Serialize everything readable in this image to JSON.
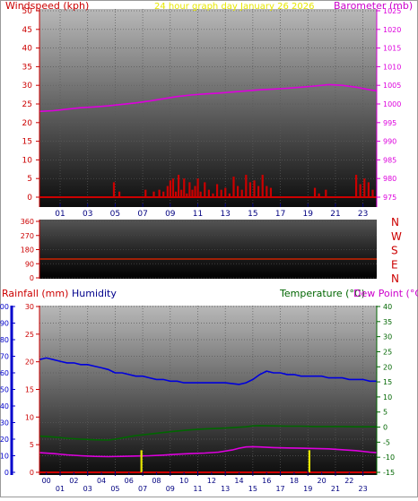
{
  "top_panel": {
    "left_label": "Windspeed (kph)",
    "center_label": "24 hour graph day   January 26 2026",
    "right_label": "Barometer (mb)"
  },
  "bottom_panel": {
    "left_label_1": "Rainfall (mm)",
    "left_label_2": "Humidity",
    "right_label_1": "Temperature (°C)",
    "right_label_2": "Dew Point (°C)"
  },
  "colors": {
    "windspeed": "#cc0000",
    "barometer": "#dd00dd",
    "center_title": "#e8e800",
    "wind_direction": "#cc2200",
    "humidity": "#0000dd",
    "rain_axis": "#cc0000",
    "temperature": "#006600",
    "dewpoint": "#dd00dd",
    "rain_bars": "#e8e800",
    "axis_blue": "#0000cc",
    "x_ticks": "#000080"
  },
  "chart_data": [
    {
      "type": "line",
      "name": "wind-barometer",
      "x_ticks": [
        "01",
        "03",
        "05",
        "07",
        "09",
        "11",
        "13",
        "15",
        "17",
        "19",
        "21",
        "23"
      ],
      "x_tick_hours": [
        1,
        3,
        5,
        7,
        9,
        11,
        13,
        15,
        17,
        19,
        21,
        23
      ],
      "xlim": [
        -0.5,
        24.0
      ],
      "y_left_ticks": [
        0,
        5,
        10,
        15,
        20,
        25,
        30,
        35,
        40,
        45,
        50
      ],
      "y_left_lim": [
        0,
        50
      ],
      "y_right_ticks": [
        975,
        980,
        985,
        990,
        995,
        1000,
        1005,
        1010,
        1015,
        1020,
        1025
      ],
      "y_right_lim": [
        975,
        1025
      ],
      "barometer": {
        "x": [
          -0.5,
          0.5,
          1.5,
          2.5,
          3.5,
          4.5,
          5.5,
          6.5,
          7.5,
          8.5,
          9.5,
          10.5,
          11.5,
          12.5,
          13.5,
          14.5,
          15.5,
          16.5,
          17.5,
          18.5,
          19.5,
          20.5,
          21.5,
          22.5,
          23.5,
          24.0
        ],
        "y": [
          998.0,
          998.2,
          998.6,
          999.0,
          999.2,
          999.5,
          999.9,
          1000.3,
          1000.8,
          1001.4,
          1002.0,
          1002.4,
          1002.7,
          1002.9,
          1003.2,
          1003.5,
          1003.8,
          1004.0,
          1004.2,
          1004.5,
          1004.8,
          1005.2,
          1005.0,
          1004.5,
          1003.8,
          1003.5
        ]
      },
      "windspeed": {
        "x": [
          4.9,
          5.3,
          7.2,
          7.8,
          8.2,
          8.5,
          8.8,
          9.0,
          9.2,
          9.4,
          9.6,
          9.8,
          10.0,
          10.2,
          10.4,
          10.6,
          10.8,
          11.0,
          11.2,
          11.5,
          11.8,
          12.1,
          12.4,
          12.7,
          13.0,
          13.3,
          13.6,
          13.9,
          14.2,
          14.5,
          14.8,
          15.1,
          15.4,
          15.7,
          16.0,
          16.3,
          19.5,
          19.8,
          20.3,
          22.5,
          22.8,
          23.1,
          23.4,
          23.7
        ],
        "y": [
          4,
          1.5,
          2,
          1.5,
          2,
          1.5,
          3,
          4.5,
          5,
          1.5,
          6,
          2,
          5,
          1,
          4,
          2,
          3,
          5,
          1.5,
          4,
          2,
          1,
          3.5,
          2,
          2.5,
          1,
          5.5,
          3,
          2,
          6,
          4,
          4.5,
          3,
          6,
          3,
          2.5,
          2.5,
          1,
          2,
          6,
          3.5,
          5,
          4,
          2
        ]
      }
    },
    {
      "type": "line",
      "name": "wind-direction",
      "y_ticks": [
        0,
        90,
        180,
        270,
        360
      ],
      "y_lim": [
        0,
        360
      ],
      "compass_labels": [
        "N",
        "W",
        "S",
        "E",
        "N"
      ],
      "direction": {
        "x": [
          -0.5,
          24.0
        ],
        "y": [
          120,
          120
        ]
      }
    },
    {
      "type": "line",
      "name": "temp-humidity-rain",
      "x_ticks": [
        "01",
        "03",
        "05",
        "07",
        "09",
        "11",
        "13",
        "15",
        "17",
        "19",
        "21",
        "23"
      ],
      "x_tick_hours": [
        1,
        3,
        5,
        7,
        9,
        11,
        13,
        15,
        17,
        19,
        21,
        23
      ],
      "x_minor_ticks": [
        "00",
        "02",
        "04",
        "06",
        "08",
        "10",
        "12",
        "14",
        "16",
        "18",
        "20",
        "22"
      ],
      "xlim": [
        -0.5,
        24.0
      ],
      "humidity_ticks": [
        0,
        10,
        20,
        30,
        40,
        50,
        60,
        70,
        80,
        90,
        100
      ],
      "humidity_lim": [
        0,
        100
      ],
      "rain_ticks": [
        0,
        5,
        10,
        15,
        20,
        25,
        30
      ],
      "rain_lim": [
        0,
        30
      ],
      "temp_ticks": [
        -15,
        -10,
        -5,
        0,
        5,
        10,
        15,
        20,
        25,
        30,
        35,
        40
      ],
      "temp_lim": [
        -15,
        40
      ],
      "humidity": {
        "x": [
          -0.5,
          0.0,
          0.5,
          1.0,
          1.5,
          2.0,
          2.5,
          3.0,
          3.5,
          4.0,
          4.5,
          5.0,
          5.5,
          6.0,
          6.5,
          7.0,
          7.5,
          8.0,
          8.5,
          9.0,
          9.5,
          10.0,
          11.0,
          12.0,
          13.0,
          14.0,
          14.5,
          15.0,
          15.5,
          16.0,
          16.5,
          17.0,
          17.5,
          18.0,
          18.5,
          19.0,
          19.5,
          20.0,
          20.5,
          21.0,
          21.5,
          22.0,
          22.5,
          23.0,
          23.5,
          24.0
        ],
        "y": [
          68,
          69,
          68,
          67,
          66,
          66,
          65,
          65,
          64,
          63,
          62,
          60,
          60,
          59,
          58,
          58,
          57,
          56,
          56,
          55,
          55,
          54,
          54,
          54,
          54,
          53,
          54,
          56,
          59,
          61,
          60,
          60,
          59,
          59,
          58,
          58,
          58,
          58,
          57,
          57,
          57,
          56,
          56,
          56,
          55,
          55
        ]
      },
      "temperature": {
        "x": [
          -0.5,
          0.5,
          1.5,
          2.5,
          3.5,
          4.5,
          5.0,
          5.5,
          6.0,
          6.5,
          7.5,
          8.5,
          9.5,
          10.5,
          11.5,
          12.5,
          13.5,
          14.5,
          15.0,
          15.5,
          16.5,
          17.5,
          18.5,
          19.5,
          20.5,
          21.5,
          22.5,
          23.5,
          24.0
        ],
        "y": [
          -3.0,
          -3.3,
          -3.7,
          -4.0,
          -4.2,
          -4.3,
          -4.0,
          -3.6,
          -3.2,
          -2.8,
          -2.3,
          -1.8,
          -1.3,
          -0.9,
          -0.6,
          -0.4,
          -0.2,
          0.1,
          0.4,
          0.5,
          0.4,
          0.3,
          0.3,
          0.2,
          0.2,
          0.2,
          0.1,
          0.1,
          0.1
        ]
      },
      "dewpoint": {
        "x": [
          -0.5,
          0.5,
          1.5,
          2.5,
          3.5,
          4.5,
          5.5,
          6.5,
          7.5,
          8.5,
          9.5,
          10.5,
          11.5,
          12.5,
          13.5,
          14.0,
          14.5,
          15.0,
          15.5,
          16.5,
          17.5,
          18.5,
          19.5,
          20.5,
          21.5,
          22.5,
          23.5,
          24.0
        ],
        "y": [
          -8.5,
          -8.8,
          -9.2,
          -9.5,
          -9.7,
          -9.8,
          -9.7,
          -9.6,
          -9.5,
          -9.3,
          -9.0,
          -8.8,
          -8.6,
          -8.3,
          -7.6,
          -7.0,
          -6.6,
          -6.5,
          -6.6,
          -6.8,
          -6.9,
          -7.0,
          -7.1,
          -7.2,
          -7.5,
          -7.8,
          -8.3,
          -8.5
        ]
      },
      "rainfall": {
        "x": [
          6.9,
          19.1
        ],
        "y": [
          4,
          4
        ]
      }
    }
  ]
}
